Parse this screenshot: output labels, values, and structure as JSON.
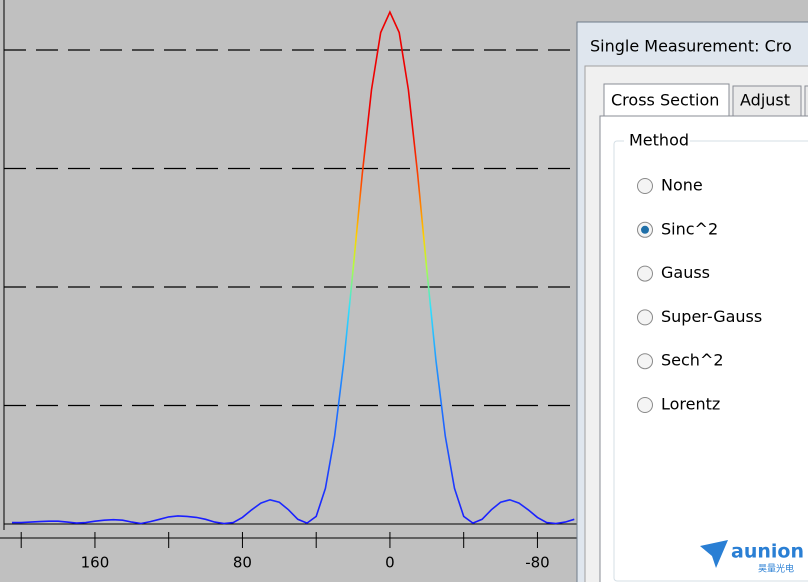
{
  "plot": {
    "type": "line",
    "x": [
      205,
      200,
      195,
      190,
      185,
      180,
      175,
      170,
      165,
      160,
      155,
      150,
      145,
      140,
      135,
      130,
      125,
      120,
      115,
      110,
      105,
      100,
      95,
      90,
      85,
      80,
      75,
      70,
      65,
      60,
      55,
      50,
      45,
      40,
      35,
      30,
      25,
      20,
      15,
      10,
      5,
      0,
      -5,
      -10,
      -15,
      -20,
      -25,
      -30,
      -35,
      -40,
      -45,
      -50,
      -55,
      -60,
      -65,
      -70,
      -75,
      -80,
      -85,
      -90,
      -95,
      -100
    ],
    "y": [
      0.003,
      0.003,
      0.004,
      0.005,
      0.006,
      0.006,
      0.004,
      0.002,
      0.003,
      0.006,
      0.008,
      0.009,
      0.008,
      0.004,
      0.001,
      0.005,
      0.01,
      0.015,
      0.017,
      0.016,
      0.014,
      0.01,
      0.004,
      0.001,
      0.003,
      0.014,
      0.03,
      0.044,
      0.051,
      0.046,
      0.03,
      0.01,
      0.002,
      0.016,
      0.075,
      0.185,
      0.344,
      0.537,
      0.739,
      0.916,
      1.037,
      1.08,
      1.037,
      0.916,
      0.739,
      0.537,
      0.344,
      0.185,
      0.075,
      0.016,
      0.002,
      0.01,
      0.03,
      0.046,
      0.051,
      0.044,
      0.03,
      0.014,
      0.003,
      0.001,
      0.004,
      0.01
    ],
    "xlim": [
      211.5,
      -102
    ],
    "ylim": [
      0,
      1.1
    ],
    "xticks": [
      160,
      80,
      0,
      -80
    ],
    "x_minor_ticks": [
      200,
      120,
      40,
      -40
    ],
    "y_gridlines": [
      0.25,
      0.5,
      0.75,
      1.0
    ]
  },
  "window": {
    "title": "Single Measurement: Cro"
  },
  "tabs": [
    "Cross Section",
    "Adjust"
  ],
  "group": {
    "title": "Method",
    "options": [
      "None",
      "Sinc^2",
      "Gauss",
      "Super-Gauss",
      "Sech^2",
      "Lorentz"
    ],
    "selected": 1
  },
  "logo": {
    "name": "aunion",
    "subtitle": "昊量光电"
  }
}
